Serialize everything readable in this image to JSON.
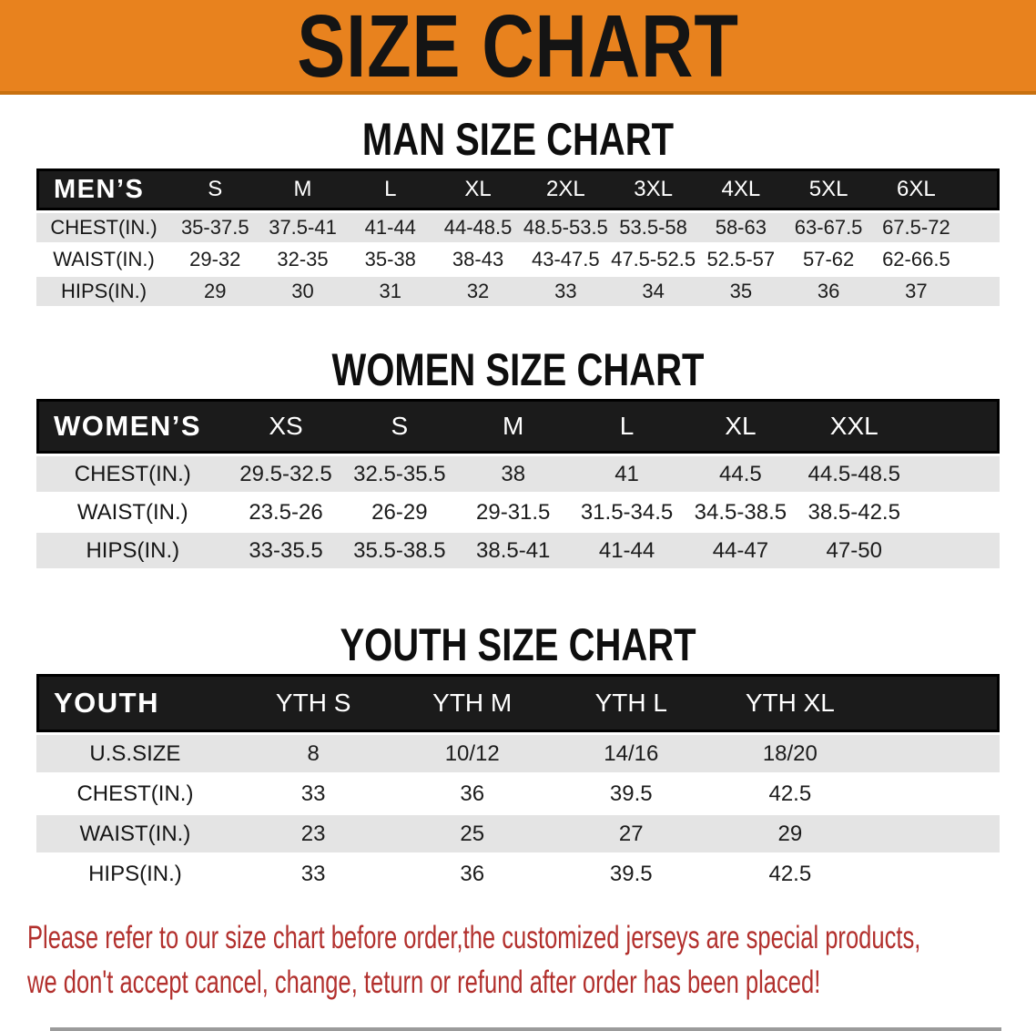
{
  "banner": {
    "title": "SIZE CHART",
    "bg_color": "#E8821E"
  },
  "men": {
    "heading": "MAN SIZE CHART",
    "corner": "MEN’S",
    "cols": [
      "S",
      "M",
      "L",
      "XL",
      "2XL",
      "3XL",
      "4XL",
      "5XL",
      "6XL"
    ],
    "rows": [
      {
        "label": "CHEST(IN.)",
        "v": [
          "35-37.5",
          "37.5-41",
          "41-44",
          "44-48.5",
          "48.5-53.5",
          "53.5-58",
          "58-63",
          "63-67.5",
          "67.5-72"
        ]
      },
      {
        "label": "WAIST(IN.)",
        "v": [
          "29-32",
          "32-35",
          "35-38",
          "38-43",
          "43-47.5",
          "47.5-52.5",
          "52.5-57",
          "57-62",
          "62-66.5"
        ]
      },
      {
        "label": "HIPS(IN.)",
        "v": [
          "29",
          "30",
          "31",
          "32",
          "33",
          "34",
          "35",
          "36",
          "37"
        ]
      }
    ]
  },
  "women": {
    "heading": "WOMEN SIZE CHART",
    "corner": "WOMEN’S",
    "cols": [
      "XS",
      "S",
      "M",
      "L",
      "XL",
      "XXL"
    ],
    "rows": [
      {
        "label": "CHEST(IN.)",
        "v": [
          "29.5-32.5",
          "32.5-35.5",
          "38",
          "41",
          "44.5",
          "44.5-48.5"
        ]
      },
      {
        "label": "WAIST(IN.)",
        "v": [
          "23.5-26",
          "26-29",
          "29-31.5",
          "31.5-34.5",
          "34.5-38.5",
          "38.5-42.5"
        ]
      },
      {
        "label": "HIPS(IN.)",
        "v": [
          "33-35.5",
          "35.5-38.5",
          "38.5-41",
          "41-44",
          "44-47",
          "47-50"
        ]
      }
    ]
  },
  "youth": {
    "heading": "YOUTH SIZE CHART",
    "corner": "YOUTH",
    "cols": [
      "YTH S",
      "YTH M",
      "YTH L",
      "YTH XL"
    ],
    "rows": [
      {
        "label": "U.S.SIZE",
        "v": [
          "8",
          "10/12",
          "14/16",
          "18/20"
        ]
      },
      {
        "label": "CHEST(IN.)",
        "v": [
          "33",
          "36",
          "39.5",
          "42.5"
        ]
      },
      {
        "label": "WAIST(IN.)",
        "v": [
          "23",
          "25",
          "27",
          "29"
        ]
      },
      {
        "label": "HIPS(IN.)",
        "v": [
          "33",
          "36",
          "39.5",
          "42.5"
        ]
      }
    ]
  },
  "disclaimer": {
    "line1": "Please refer to our size chart before order,the customized jerseys are special products,",
    "line2": "we don't accept cancel, change, teturn or refund after order has been placed!",
    "color": "#B2302D"
  },
  "colors": {
    "accent_orange": "#E8821E",
    "header_black": "#1b1b1b",
    "row_gray": "#E4E4E4",
    "disclaimer_red": "#B2302D"
  }
}
